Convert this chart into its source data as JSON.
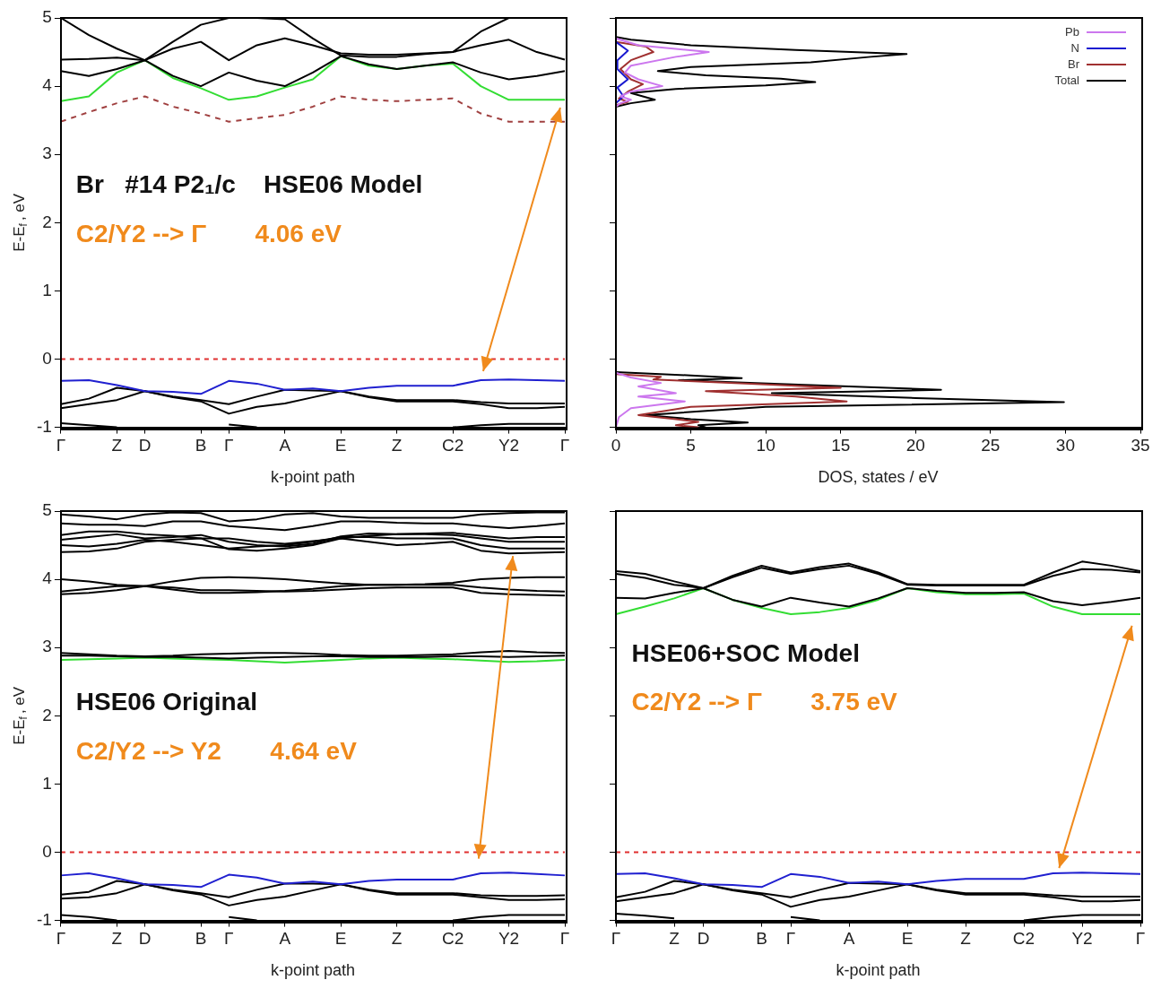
{
  "chart_data": [
    {
      "type": "line",
      "annotations": [
        "Br   #14 P2₁/c    HSE06 Model",
        "C2/Y2 --> Γ       4.06 eV"
      ],
      "xlabel": "k-point path",
      "ylabel": "E-E$_{f}$, eV",
      "categories": [
        "Γ",
        null,
        "Z",
        "D",
        null,
        "B",
        "Γ",
        null,
        "A",
        null,
        "E",
        null,
        "Z",
        null,
        "C2",
        null,
        "Y2",
        null,
        "Γ"
      ],
      "ylim": [
        -1,
        5
      ],
      "yticks": [
        -1,
        0,
        1,
        2,
        3,
        4,
        5
      ],
      "ref_lines": [
        {
          "axis": "y",
          "value": 0,
          "color": "#e03030",
          "line_style": "dashed"
        }
      ],
      "series": [
        {
          "color": "#000000",
          "values": [
            5.0,
            4.75,
            4.55,
            4.38,
            4.65,
            4.9,
            5.0,
            5.0,
            4.98,
            4.7,
            4.45,
            4.43,
            4.43,
            4.47,
            4.5,
            4.8,
            5.0,
            5.0,
            5.0
          ]
        },
        {
          "color": "#000000",
          "values": [
            4.39,
            4.4,
            4.42,
            4.38,
            4.55,
            4.65,
            4.38,
            4.6,
            4.7,
            4.6,
            4.48,
            4.46,
            4.46,
            4.48,
            4.5,
            4.6,
            4.68,
            4.5,
            4.39
          ]
        },
        {
          "color": "#000000",
          "values": [
            4.22,
            4.15,
            4.25,
            4.38,
            4.15,
            4.0,
            4.2,
            4.08,
            4.0,
            4.2,
            4.44,
            4.32,
            4.25,
            4.3,
            4.35,
            4.2,
            4.1,
            4.15,
            4.22
          ]
        },
        {
          "color": "#33dd33",
          "values": [
            3.78,
            3.85,
            4.2,
            4.38,
            4.12,
            3.97,
            3.8,
            3.85,
            3.98,
            4.1,
            4.44,
            4.3,
            4.25,
            4.3,
            4.33,
            4.0,
            3.8,
            3.8,
            3.8
          ]
        },
        {
          "color": "#a04040",
          "line_style": "dashed",
          "values": [
            3.48,
            3.62,
            3.75,
            3.85,
            3.7,
            3.6,
            3.48,
            3.53,
            3.58,
            3.7,
            3.85,
            3.8,
            3.78,
            3.8,
            3.82,
            3.6,
            3.48,
            3.48,
            3.48
          ]
        },
        {
          "color": "#2020d0",
          "values": [
            -0.32,
            -0.31,
            -0.38,
            -0.47,
            -0.48,
            -0.51,
            -0.32,
            -0.36,
            -0.45,
            -0.43,
            -0.47,
            -0.42,
            -0.39,
            -0.39,
            -0.39,
            -0.31,
            -0.3,
            -0.31,
            -0.32
          ]
        },
        {
          "color": "#000000",
          "values": [
            -0.66,
            -0.58,
            -0.42,
            -0.47,
            -0.55,
            -0.6,
            -0.66,
            -0.55,
            -0.45,
            -0.46,
            -0.47,
            -0.55,
            -0.6,
            -0.6,
            -0.6,
            -0.63,
            -0.65,
            -0.65,
            -0.65
          ]
        },
        {
          "color": "#000000",
          "values": [
            -0.72,
            -0.66,
            -0.6,
            -0.47,
            -0.56,
            -0.62,
            -0.8,
            -0.7,
            -0.65,
            -0.56,
            -0.47,
            -0.56,
            -0.62,
            -0.62,
            -0.62,
            -0.66,
            -0.72,
            -0.72,
            -0.7
          ]
        },
        {
          "color": "#000000",
          "values": [
            -0.94,
            -0.97,
            -1.0,
            null,
            null,
            null,
            -0.96,
            -1.0,
            null,
            null,
            null,
            null,
            null,
            null,
            -1.0,
            -0.97,
            -0.95,
            -0.95,
            -0.95
          ]
        }
      ]
    },
    {
      "type": "line",
      "xlabel": "DOS, states / eV",
      "legend": "top right",
      "tick_labels": "x",
      "xlim": [
        0,
        35
      ],
      "xticks": [
        0,
        5,
        10,
        15,
        20,
        25,
        30,
        35
      ],
      "ylim": [
        -1,
        5
      ],
      "yticks": [
        -1,
        0,
        1,
        2,
        3,
        4,
        5
      ],
      "series": [
        {
          "name": "Pb",
          "color": "#cc77ee",
          "x": [
            0,
            1.5,
            6.2,
            4,
            1,
            0.6,
            1.5,
            3.1,
            1,
            0.3,
            1,
            0.3,
            0,
            null,
            0,
            1,
            3,
            1.5,
            4,
            1.5,
            4.6,
            1,
            0.2,
            0
          ],
          "values": [
            4.7,
            4.6,
            4.5,
            4.43,
            4.3,
            4.2,
            4.1,
            4.0,
            3.92,
            3.85,
            3.8,
            3.75,
            3.7,
            null,
            -0.2,
            -0.27,
            -0.35,
            -0.4,
            -0.5,
            -0.55,
            -0.62,
            -0.72,
            -0.85,
            -1.0
          ]
        },
        {
          "name": "N",
          "color": "#1a1ad0",
          "x": [
            0,
            0.8,
            0.1,
            0.1,
            0.8,
            0.1,
            0.5,
            0
          ],
          "values": [
            4.65,
            4.52,
            4.38,
            4.25,
            4.1,
            3.98,
            3.85,
            3.75
          ]
        },
        {
          "name": "Br",
          "color": "#a03030",
          "x": [
            0,
            2,
            2.5,
            1,
            0.3,
            1,
            1.8,
            0.8,
            0.2,
            0.8,
            0,
            null,
            0,
            3,
            2.5,
            10,
            15,
            6,
            12,
            15.4,
            5,
            1.5,
            4,
            5.5,
            4,
            5.5
          ],
          "values": [
            4.65,
            4.58,
            4.5,
            4.38,
            4.25,
            4.1,
            4.03,
            3.92,
            3.82,
            3.77,
            3.72,
            null,
            -0.22,
            -0.26,
            -0.3,
            -0.37,
            -0.42,
            -0.47,
            -0.55,
            -0.62,
            -0.7,
            -0.82,
            -0.88,
            -0.92,
            -0.97,
            -1.0
          ]
        },
        {
          "name": "Total",
          "color": "#000000",
          "x": [
            0,
            1,
            5,
            12,
            19.4,
            17,
            13,
            5,
            2.8,
            6,
            11,
            13.3,
            10,
            4,
            1,
            2.6,
            1,
            0,
            null,
            0,
            5,
            8.4,
            4.2,
            13,
            21.7,
            10.4,
            20,
            29.9,
            10,
            2,
            5,
            8.8,
            5.5,
            6
          ],
          "values": [
            4.72,
            4.68,
            4.6,
            4.53,
            4.47,
            4.43,
            4.35,
            4.28,
            4.22,
            4.16,
            4.11,
            4.06,
            4.01,
            3.96,
            3.9,
            3.8,
            3.75,
            3.7,
            null,
            -0.19,
            -0.24,
            -0.28,
            -0.31,
            -0.38,
            -0.45,
            -0.5,
            -0.57,
            -0.63,
            -0.7,
            -0.82,
            -0.88,
            -0.93,
            -0.97,
            -1.0
          ]
        }
      ]
    },
    {
      "type": "line",
      "annotations": [
        "HSE06 Original",
        "C2/Y2 --> Y2       4.64 eV"
      ],
      "xlabel": "k-point path",
      "ylabel": "E-E$_{f}$, eV",
      "categories": [
        "Γ",
        null,
        "Z",
        "D",
        null,
        "B",
        "Γ",
        null,
        "A",
        null,
        "E",
        null,
        "Z",
        null,
        "C2",
        null,
        "Y2",
        null,
        "Γ"
      ],
      "ylim": [
        -1,
        5
      ],
      "yticks": [
        -1,
        0,
        1,
        2,
        3,
        4,
        5
      ],
      "ref_lines": [
        {
          "axis": "y",
          "value": 0,
          "color": "#e03030",
          "line_style": "dashed"
        }
      ],
      "series": [
        {
          "color": "#000000",
          "values": [
            4.95,
            4.92,
            4.88,
            4.95,
            4.98,
            4.97,
            4.85,
            4.88,
            4.95,
            4.97,
            4.92,
            4.9,
            4.9,
            4.9,
            4.9,
            4.95,
            4.97,
            4.98,
            4.98
          ]
        },
        {
          "color": "#000000",
          "values": [
            4.82,
            4.8,
            4.8,
            4.78,
            4.85,
            4.85,
            4.78,
            4.75,
            4.72,
            4.78,
            4.85,
            4.85,
            4.83,
            4.82,
            4.82,
            4.78,
            4.75,
            4.78,
            4.82
          ]
        },
        {
          "color": "#000000",
          "values": [
            4.65,
            4.7,
            4.7,
            4.66,
            4.64,
            4.6,
            4.6,
            4.55,
            4.52,
            4.56,
            4.6,
            4.64,
            4.66,
            4.67,
            4.68,
            4.64,
            4.6,
            4.62,
            4.62
          ]
        },
        {
          "color": "#000000",
          "values": [
            4.58,
            4.62,
            4.66,
            4.6,
            4.62,
            4.65,
            4.55,
            4.5,
            4.48,
            4.52,
            4.63,
            4.67,
            4.66,
            4.66,
            4.65,
            4.6,
            4.55,
            4.55,
            4.55
          ]
        },
        {
          "color": "#000000",
          "values": [
            4.5,
            4.48,
            4.52,
            4.58,
            4.55,
            4.5,
            4.45,
            4.48,
            4.5,
            4.55,
            4.62,
            4.62,
            4.6,
            4.6,
            4.6,
            4.5,
            4.45,
            4.45,
            4.45
          ]
        },
        {
          "color": "#000000",
          "values": [
            4.4,
            4.41,
            4.45,
            4.55,
            4.58,
            4.6,
            4.44,
            4.42,
            4.45,
            4.5,
            4.6,
            4.55,
            4.5,
            4.52,
            4.55,
            4.42,
            4.38,
            4.39,
            4.4
          ]
        },
        {
          "color": "#000000",
          "values": [
            4.0,
            3.97,
            3.92,
            3.9,
            3.97,
            4.02,
            4.03,
            4.02,
            4.0,
            3.97,
            3.94,
            3.92,
            3.92,
            3.93,
            3.95,
            4.0,
            4.02,
            4.03,
            4.03
          ]
        },
        {
          "color": "#000000",
          "values": [
            3.82,
            3.86,
            3.9,
            3.9,
            3.85,
            3.8,
            3.8,
            3.81,
            3.83,
            3.86,
            3.9,
            3.92,
            3.92,
            3.92,
            3.92,
            3.88,
            3.85,
            3.83,
            3.82
          ]
        },
        {
          "color": "#000000",
          "values": [
            3.78,
            3.8,
            3.84,
            3.9,
            3.88,
            3.84,
            3.84,
            3.83,
            3.82,
            3.83,
            3.85,
            3.87,
            3.88,
            3.88,
            3.88,
            3.8,
            3.78,
            3.77,
            3.76
          ]
        },
        {
          "color": "#000000",
          "values": [
            2.92,
            2.9,
            2.88,
            2.87,
            2.88,
            2.9,
            2.91,
            2.92,
            2.92,
            2.91,
            2.89,
            2.88,
            2.88,
            2.89,
            2.9,
            2.93,
            2.95,
            2.93,
            2.92
          ]
        },
        {
          "color": "#000000",
          "values": [
            2.88,
            2.88,
            2.87,
            2.86,
            2.86,
            2.85,
            2.84,
            2.85,
            2.86,
            2.87,
            2.87,
            2.86,
            2.86,
            2.86,
            2.87,
            2.87,
            2.86,
            2.87,
            2.88
          ]
        },
        {
          "color": "#33dd33",
          "values": [
            2.82,
            2.83,
            2.84,
            2.85,
            2.84,
            2.83,
            2.82,
            2.8,
            2.78,
            2.8,
            2.82,
            2.84,
            2.85,
            2.84,
            2.83,
            2.81,
            2.79,
            2.8,
            2.82
          ]
        },
        {
          "color": "#2020d0",
          "values": [
            -0.34,
            -0.31,
            -0.38,
            -0.47,
            -0.48,
            -0.51,
            -0.33,
            -0.37,
            -0.46,
            -0.43,
            -0.47,
            -0.42,
            -0.4,
            -0.4,
            -0.4,
            -0.31,
            -0.3,
            -0.32,
            -0.34
          ]
        },
        {
          "color": "#000000",
          "values": [
            -0.62,
            -0.58,
            -0.42,
            -0.47,
            -0.55,
            -0.6,
            -0.66,
            -0.55,
            -0.46,
            -0.46,
            -0.47,
            -0.55,
            -0.6,
            -0.6,
            -0.6,
            -0.63,
            -0.64,
            -0.64,
            -0.63
          ]
        },
        {
          "color": "#000000",
          "values": [
            -0.68,
            -0.66,
            -0.6,
            -0.47,
            -0.56,
            -0.62,
            -0.78,
            -0.7,
            -0.65,
            -0.56,
            -0.47,
            -0.56,
            -0.62,
            -0.62,
            -0.62,
            -0.66,
            -0.7,
            -0.7,
            -0.69
          ]
        },
        {
          "color": "#000000",
          "values": [
            -0.92,
            -0.95,
            -1.0,
            null,
            null,
            null,
            -0.95,
            -1.0,
            null,
            null,
            null,
            null,
            null,
            null,
            -1.0,
            -0.95,
            -0.92,
            -0.92,
            -0.92
          ]
        }
      ]
    },
    {
      "type": "line",
      "annotations": [
        "HSE06+SOC Model",
        "C2/Y2 --> Γ       3.75 eV"
      ],
      "xlabel": "k-point path",
      "tick_labels": "x",
      "categories": [
        "Γ",
        null,
        "Z",
        "D",
        null,
        "B",
        "Γ",
        null,
        "A",
        null,
        "E",
        null,
        "Z",
        null,
        "C2",
        null,
        "Y2",
        null,
        "Γ"
      ],
      "ylim": [
        -1,
        5
      ],
      "yticks": [
        -1,
        0,
        1,
        2,
        3,
        4,
        5
      ],
      "ref_lines": [
        {
          "axis": "y",
          "value": 0,
          "color": "#e03030",
          "line_style": "dashed"
        }
      ],
      "series": [
        {
          "color": "#000000",
          "values": [
            4.12,
            4.08,
            3.97,
            3.87,
            4.05,
            4.2,
            4.1,
            4.18,
            4.23,
            4.1,
            3.93,
            3.92,
            3.92,
            3.92,
            3.92,
            4.1,
            4.26,
            4.2,
            4.12
          ]
        },
        {
          "color": "#000000",
          "values": [
            4.08,
            4.02,
            3.92,
            3.87,
            4.03,
            4.17,
            4.08,
            4.15,
            4.2,
            4.08,
            3.92,
            3.91,
            3.91,
            3.91,
            3.91,
            4.05,
            4.15,
            4.14,
            4.1
          ]
        },
        {
          "color": "#000000",
          "values": [
            3.73,
            3.72,
            3.8,
            3.87,
            3.7,
            3.6,
            3.73,
            3.66,
            3.6,
            3.72,
            3.87,
            3.83,
            3.8,
            3.8,
            3.81,
            3.68,
            3.62,
            3.67,
            3.73
          ]
        },
        {
          "color": "#33dd33",
          "values": [
            3.49,
            3.6,
            3.72,
            3.87,
            3.7,
            3.58,
            3.49,
            3.52,
            3.58,
            3.7,
            3.87,
            3.81,
            3.78,
            3.78,
            3.79,
            3.6,
            3.49,
            3.49,
            3.49
          ]
        },
        {
          "color": "#2020d0",
          "values": [
            -0.32,
            -0.31,
            -0.38,
            -0.47,
            -0.48,
            -0.51,
            -0.32,
            -0.36,
            -0.45,
            -0.43,
            -0.47,
            -0.42,
            -0.39,
            -0.39,
            -0.39,
            -0.31,
            -0.3,
            -0.31,
            -0.32
          ]
        },
        {
          "color": "#000000",
          "values": [
            -0.66,
            -0.58,
            -0.42,
            -0.47,
            -0.55,
            -0.6,
            -0.66,
            -0.55,
            -0.45,
            -0.46,
            -0.47,
            -0.55,
            -0.6,
            -0.6,
            -0.6,
            -0.63,
            -0.65,
            -0.65,
            -0.65
          ]
        },
        {
          "color": "#000000",
          "values": [
            -0.72,
            -0.66,
            -0.6,
            -0.47,
            -0.56,
            -0.62,
            -0.8,
            -0.7,
            -0.65,
            -0.56,
            -0.47,
            -0.56,
            -0.62,
            -0.62,
            -0.62,
            -0.66,
            -0.72,
            -0.72,
            -0.7
          ]
        },
        {
          "color": "#000000",
          "values": [
            -0.9,
            -0.93,
            -0.97,
            null,
            null,
            null,
            -0.95,
            -1.0,
            null,
            null,
            null,
            null,
            null,
            null,
            -1.0,
            -0.95,
            -0.92,
            -0.92,
            -0.92
          ]
        }
      ]
    }
  ]
}
